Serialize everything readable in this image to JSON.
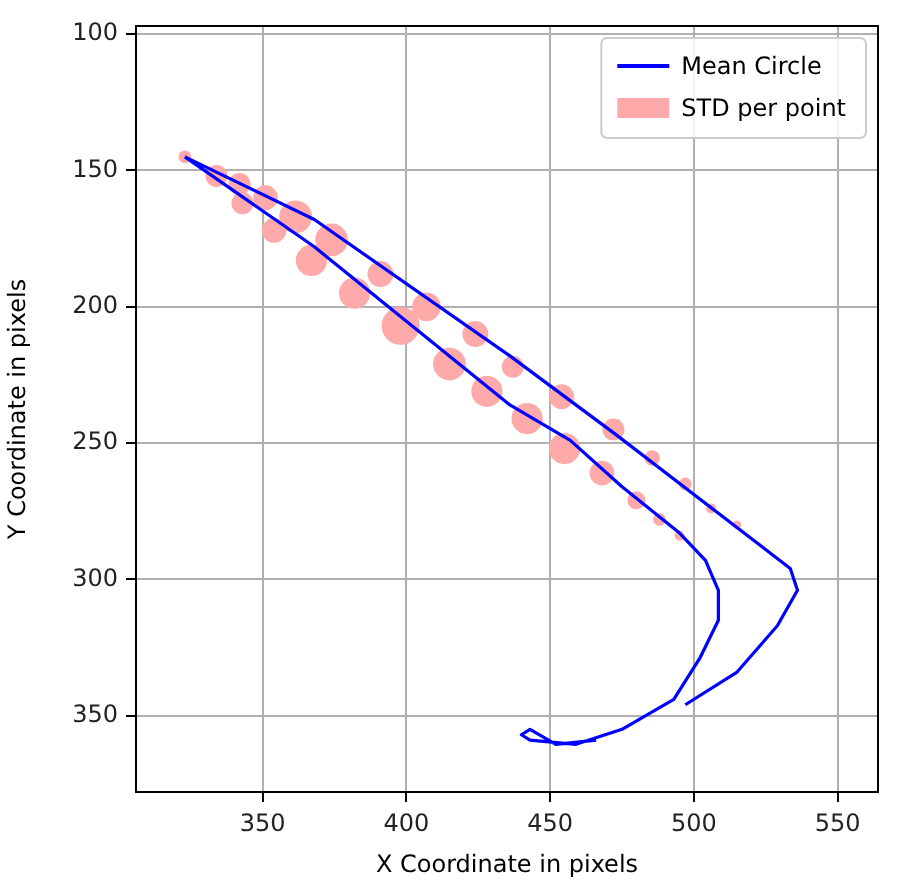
{
  "chart_data": {
    "type": "line",
    "xlabel": "X Coordinate in pixels",
    "ylabel": "Y Coordinate in pixels",
    "xlim": [
      306,
      564
    ],
    "ylim": [
      378,
      97
    ],
    "xticks": [
      350,
      400,
      450,
      500,
      550
    ],
    "yticks": [
      100,
      150,
      200,
      250,
      300,
      350
    ],
    "grid": true,
    "legend": "top right",
    "line_style": "solid",
    "series": [
      {
        "name": "Mean Circle",
        "color": "#0000ff",
        "x": [
          323,
          368,
          436,
          473,
          533.5,
          536,
          529,
          515,
          497,
          494,
          466,
          452,
          443,
          440,
          443,
          459,
          475,
          493,
          502,
          508.5,
          508.5,
          504,
          495,
          475,
          457,
          436,
          368,
          323
        ],
        "values": [
          145,
          168,
          218,
          247,
          296,
          304,
          317,
          334,
          346,
          null,
          359,
          360.5,
          355,
          357,
          359,
          360.5,
          355,
          344,
          329,
          315,
          304,
          293,
          283,
          266,
          249,
          236,
          178,
          145
        ]
      },
      {
        "name": "STD per point",
        "type": "bubble",
        "color": "#ffaaaa",
        "x": [
          323,
          334,
          342,
          343,
          351,
          354,
          361.5,
          367,
          374,
          382,
          391,
          398,
          407,
          415,
          424,
          428,
          437,
          442,
          454,
          455,
          468,
          472,
          480,
          485.5,
          488,
          495,
          497,
          506,
          515
        ],
        "values": [
          145,
          152,
          155,
          162,
          160,
          172,
          167,
          183,
          175.5,
          195,
          188,
          207,
          200,
          221,
          210,
          231,
          222,
          241,
          233,
          252,
          261,
          245,
          271,
          255.5,
          278,
          284,
          265,
          274,
          280
        ],
        "sizes": [
          0.09,
          0.31,
          0.31,
          0.31,
          0.4,
          0.4,
          0.73,
          0.66,
          0.73,
          0.66,
          0.44,
          1,
          0.55,
          0.73,
          0.44,
          0.66,
          0.31,
          0.66,
          0.4,
          0.66,
          0.4,
          0.31,
          0.2,
          0.14,
          0.09,
          0.05,
          0.09,
          0.05,
          0.03
        ]
      }
    ]
  }
}
